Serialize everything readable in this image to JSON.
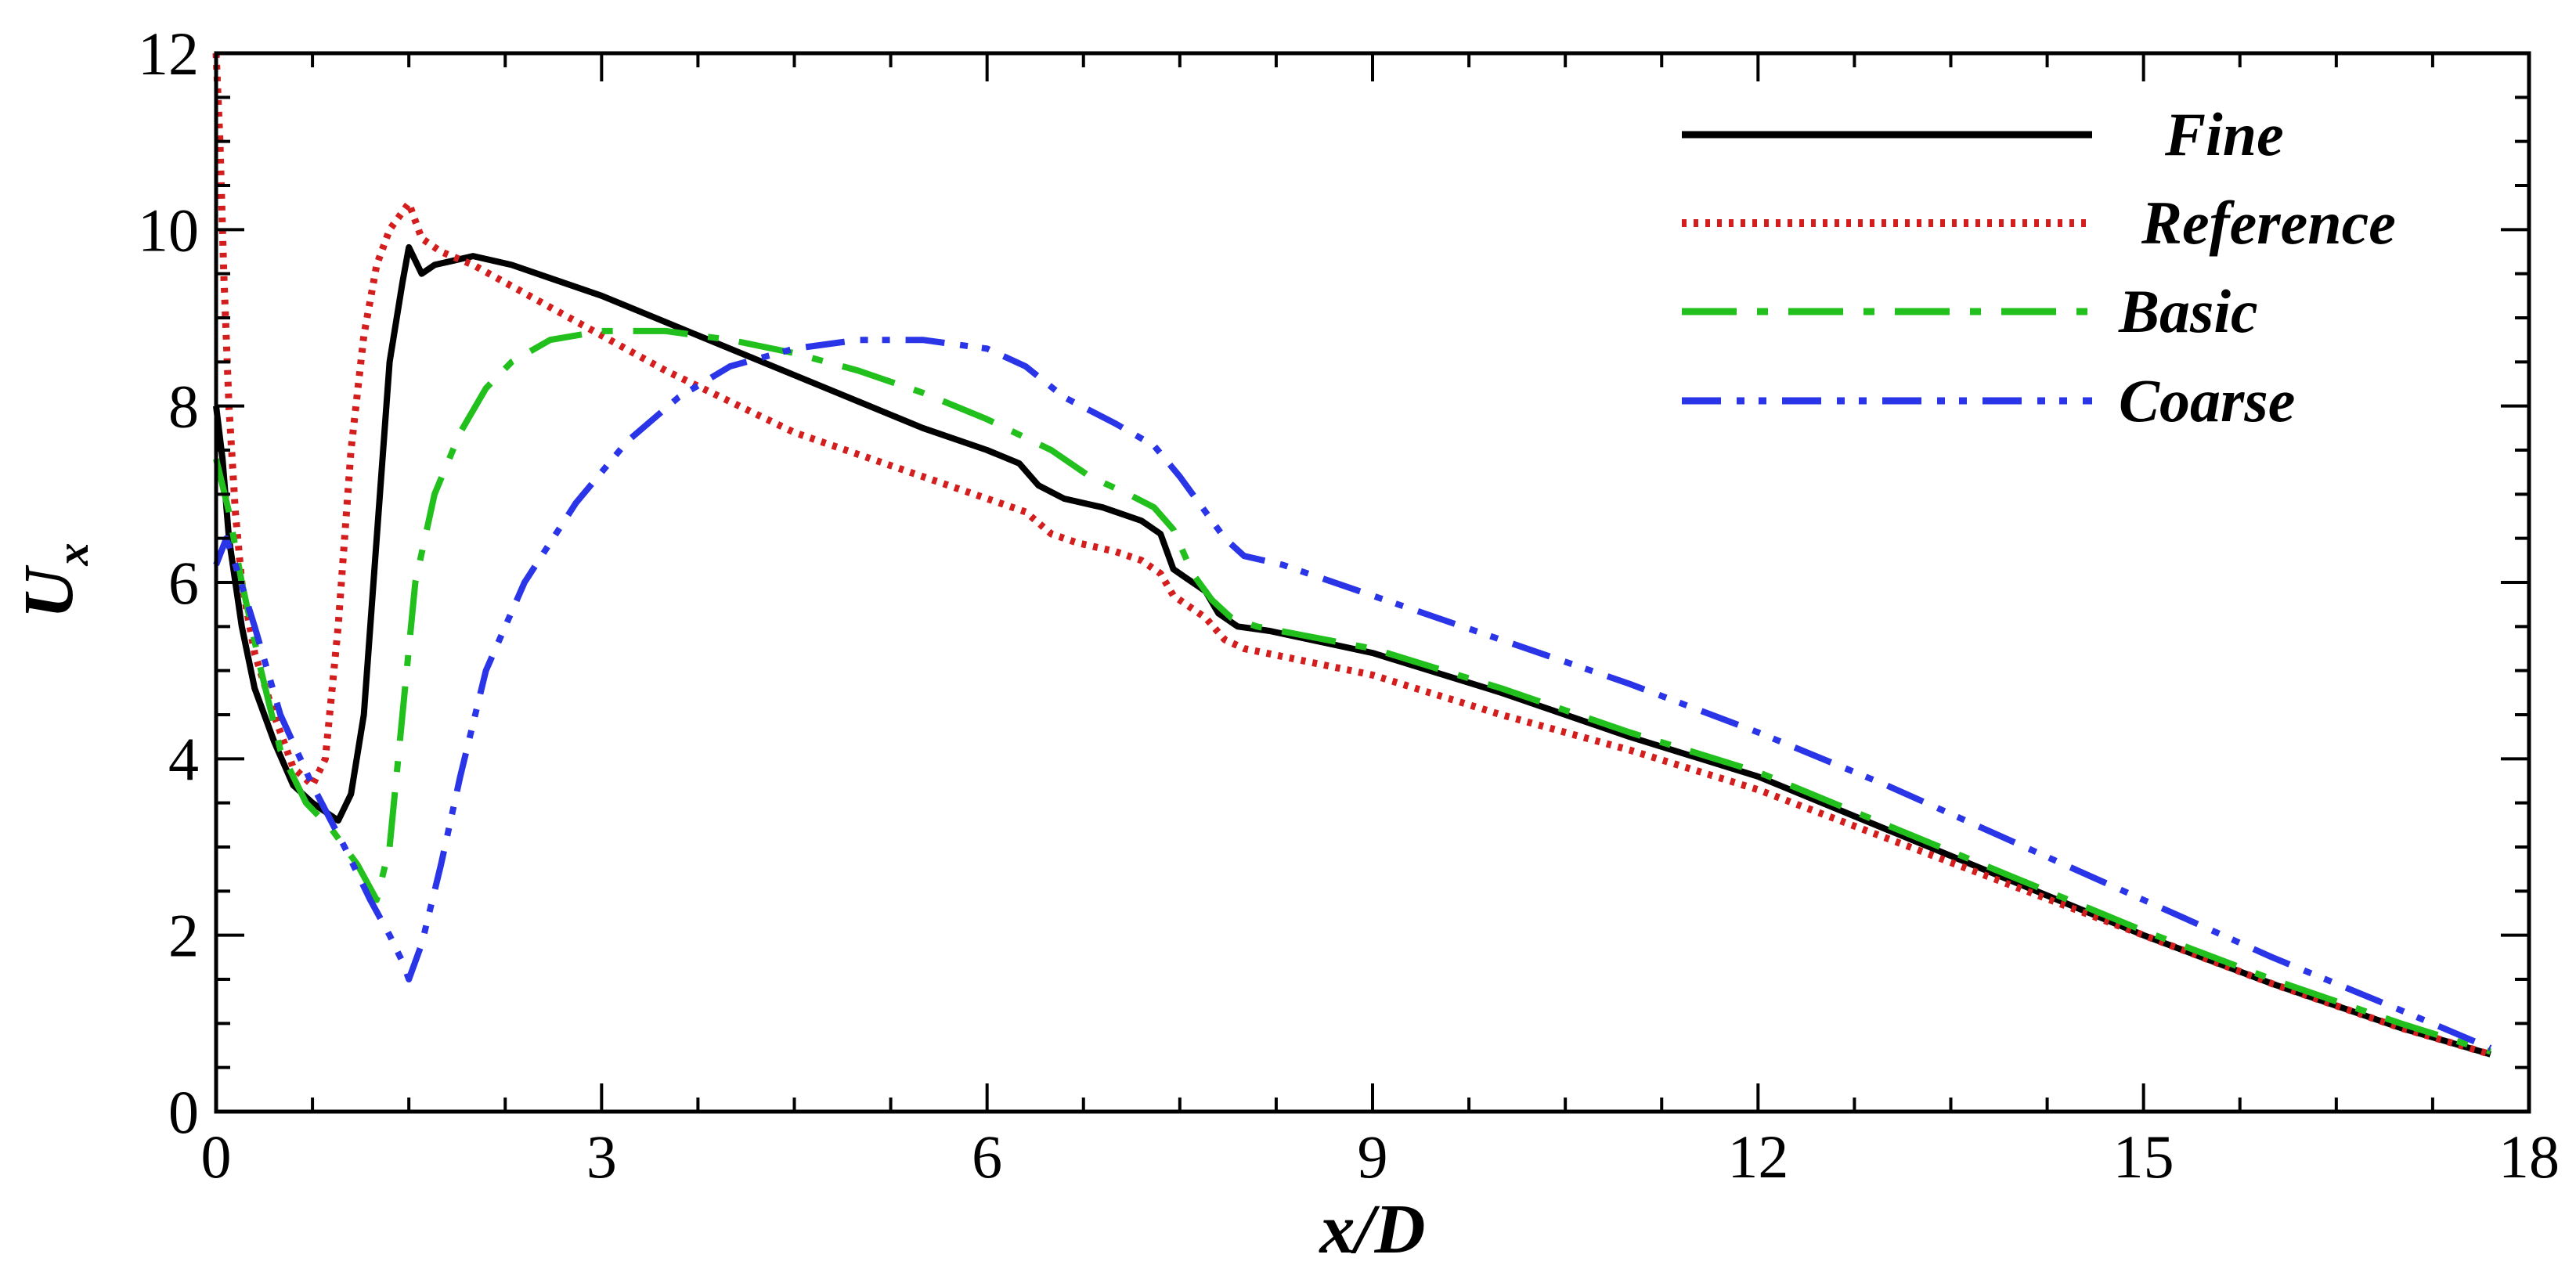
{
  "chart_data": {
    "type": "line",
    "title": "",
    "xlabel": "x/D",
    "ylabel_main": "U",
    "ylabel_sub": "x",
    "xlim": [
      0,
      18
    ],
    "ylim": [
      0,
      12
    ],
    "xticks": [
      0,
      3,
      6,
      9,
      12,
      15,
      18
    ],
    "yticks": [
      0,
      2,
      4,
      6,
      8,
      10,
      12
    ],
    "xtick_labels": [
      "0",
      "3",
      "6",
      "9",
      "12",
      "15",
      "18"
    ],
    "ytick_labels": [
      "0",
      "2",
      "4",
      "6",
      "8",
      "10",
      "12"
    ],
    "legend_position": "top-right",
    "grid": false,
    "series": [
      {
        "name": "Fine",
        "color": "#000000",
        "style": "solid",
        "x": [
          0.0,
          0.05,
          0.1,
          0.2,
          0.3,
          0.45,
          0.6,
          0.75,
          0.85,
          0.95,
          1.05,
          1.15,
          1.25,
          1.35,
          1.45,
          1.5,
          1.6,
          1.7,
          1.85,
          2.0,
          2.3,
          2.6,
          3.0,
          3.5,
          4.0,
          4.5,
          5.0,
          5.5,
          6.0,
          6.25,
          6.4,
          6.6,
          6.9,
          7.2,
          7.35,
          7.45,
          7.55,
          7.7,
          7.8,
          7.95,
          8.2,
          9.0,
          10.0,
          11.0,
          12.0,
          13.0,
          14.0,
          15.0,
          16.0,
          17.0,
          17.7
        ],
        "y": [
          8.0,
          7.4,
          6.5,
          5.5,
          4.8,
          4.2,
          3.7,
          3.5,
          3.4,
          3.3,
          3.6,
          4.5,
          6.5,
          8.5,
          9.4,
          9.8,
          9.5,
          9.6,
          9.65,
          9.7,
          9.6,
          9.45,
          9.25,
          8.95,
          8.65,
          8.35,
          8.05,
          7.75,
          7.5,
          7.35,
          7.1,
          6.95,
          6.85,
          6.7,
          6.55,
          6.15,
          6.05,
          5.9,
          5.65,
          5.5,
          5.45,
          5.2,
          4.75,
          4.25,
          3.8,
          3.2,
          2.6,
          2.0,
          1.45,
          0.95,
          0.65
        ]
      },
      {
        "name": "Reference",
        "color": "#d41d1d",
        "style": "dotted",
        "x": [
          0.0,
          0.03,
          0.06,
          0.1,
          0.15,
          0.2,
          0.3,
          0.45,
          0.6,
          0.75,
          0.85,
          0.95,
          1.05,
          1.15,
          1.25,
          1.35,
          1.45,
          1.5,
          1.6,
          1.75,
          2.0,
          2.5,
          3.0,
          3.5,
          4.0,
          4.5,
          5.0,
          5.5,
          6.0,
          6.3,
          6.5,
          6.7,
          7.0,
          7.2,
          7.35,
          7.45,
          7.55,
          7.7,
          7.85,
          8.0,
          9.0,
          10.0,
          11.0,
          12.0,
          13.0,
          14.0,
          15.0,
          16.0,
          17.0,
          17.7
        ],
        "y": [
          12.0,
          11.0,
          9.5,
          8.0,
          6.8,
          6.0,
          5.2,
          4.5,
          3.9,
          3.7,
          4.0,
          5.5,
          7.5,
          8.8,
          9.6,
          10.0,
          10.2,
          10.3,
          9.9,
          9.75,
          9.6,
          9.2,
          8.8,
          8.4,
          8.05,
          7.7,
          7.45,
          7.2,
          6.95,
          6.8,
          6.55,
          6.45,
          6.35,
          6.25,
          6.1,
          5.85,
          5.75,
          5.6,
          5.35,
          5.25,
          4.95,
          4.5,
          4.1,
          3.65,
          3.1,
          2.55,
          2.0,
          1.45,
          0.95,
          0.65
        ]
      },
      {
        "name": "Basic",
        "color": "#22c01c",
        "style": "longdash-dot",
        "x": [
          0.0,
          0.1,
          0.2,
          0.35,
          0.5,
          0.7,
          0.9,
          1.1,
          1.25,
          1.35,
          1.45,
          1.55,
          1.7,
          1.9,
          2.1,
          2.3,
          2.6,
          3.0,
          3.5,
          4.0,
          4.5,
          5.0,
          5.5,
          6.0,
          6.5,
          6.8,
          7.1,
          7.3,
          7.45,
          7.6,
          7.75,
          7.9,
          8.1,
          9.0,
          10.0,
          11.0,
          12.0,
          13.0,
          14.0,
          15.0,
          16.0,
          17.0,
          17.7
        ],
        "y": [
          7.4,
          6.8,
          6.0,
          5.0,
          4.1,
          3.5,
          3.2,
          2.8,
          2.4,
          3.0,
          4.5,
          6.0,
          7.0,
          7.7,
          8.2,
          8.5,
          8.75,
          8.85,
          8.85,
          8.75,
          8.6,
          8.4,
          8.15,
          7.85,
          7.5,
          7.2,
          7.0,
          6.85,
          6.6,
          6.1,
          5.8,
          5.6,
          5.5,
          5.25,
          4.8,
          4.3,
          3.85,
          3.25,
          2.65,
          2.05,
          1.5,
          1.0,
          0.68
        ]
      },
      {
        "name": "Coarse",
        "color": "#2b35e8",
        "style": "dashdotdot",
        "x": [
          0.0,
          0.08,
          0.15,
          0.3,
          0.5,
          0.75,
          1.0,
          1.2,
          1.35,
          1.45,
          1.5,
          1.6,
          1.75,
          1.9,
          2.1,
          2.4,
          2.8,
          3.2,
          3.6,
          4.0,
          4.5,
          5.0,
          5.5,
          6.0,
          6.3,
          6.6,
          7.0,
          7.3,
          7.5,
          7.7,
          7.85,
          8.0,
          8.3,
          9.0,
          10.0,
          11.0,
          12.0,
          13.0,
          14.0,
          15.0,
          16.0,
          17.0,
          17.7
        ],
        "y": [
          6.2,
          6.5,
          6.2,
          5.5,
          4.5,
          3.7,
          3.0,
          2.4,
          2.0,
          1.7,
          1.5,
          1.9,
          2.8,
          3.8,
          5.0,
          6.0,
          6.9,
          7.6,
          8.1,
          8.45,
          8.65,
          8.75,
          8.75,
          8.65,
          8.45,
          8.1,
          7.8,
          7.55,
          7.2,
          6.8,
          6.5,
          6.3,
          6.2,
          5.85,
          5.35,
          4.85,
          4.3,
          3.7,
          3.05,
          2.4,
          1.75,
          1.15,
          0.72
        ]
      }
    ]
  }
}
